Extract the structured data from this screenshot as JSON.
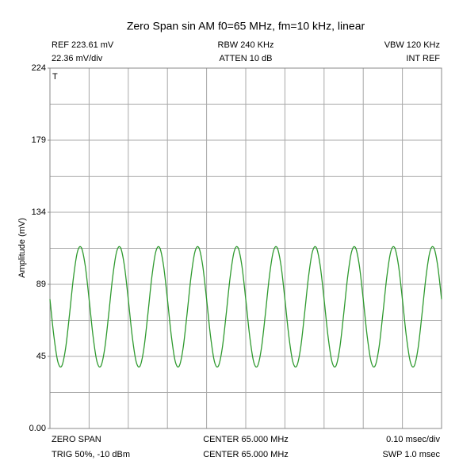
{
  "chart_data": {
    "type": "line",
    "title": "Zero Span sin AM f0=65 MHz, fm=10 kHz, linear",
    "y_label": "Amplitude (mV)",
    "marker": "T",
    "header": [
      [
        "REF 223.61 mV",
        "RBW 240 KHz",
        "VBW 120 KHz"
      ],
      [
        "22.36 mV/div",
        "ATTEN 10 dB",
        "INT REF"
      ]
    ],
    "footer": [
      [
        "ZERO SPAN",
        "CENTER 65.000 MHz",
        "0.10 msec/div"
      ],
      [
        "TRIG 50%, -10 dBm",
        "CENTER 65.000 MHz",
        "SWP 1.0 msec"
      ]
    ],
    "xlim": [
      0,
      1.0
    ],
    "ylim": [
      0,
      223.61
    ],
    "yticks": [
      {
        "value": 0,
        "label": "0.00"
      },
      {
        "value": 44.72,
        "label": "45"
      },
      {
        "value": 89.44,
        "label": "89"
      },
      {
        "value": 134.17,
        "label": "134"
      },
      {
        "value": 178.89,
        "label": "179"
      },
      {
        "value": 223.61,
        "label": "224"
      }
    ],
    "ygrid": [
      0,
      22.36,
      44.72,
      67.08,
      89.44,
      111.81,
      134.17,
      156.53,
      178.89,
      201.25,
      223.61
    ],
    "xgrid": [
      0,
      0.1,
      0.2,
      0.3,
      0.4,
      0.5,
      0.6,
      0.7,
      0.8,
      0.9,
      1.0
    ],
    "grid": true,
    "x": [
      0,
      0.01,
      0.02,
      0.03,
      0.04,
      0.05,
      0.06,
      0.07,
      0.08,
      0.09,
      0.1,
      0.11,
      0.12,
      0.13,
      0.14,
      0.15,
      0.16,
      0.17,
      0.18,
      0.19,
      0.2,
      0.21,
      0.22,
      0.23,
      0.24,
      0.25,
      0.26,
      0.27,
      0.28,
      0.29,
      0.3,
      0.31,
      0.32,
      0.33,
      0.34,
      0.35,
      0.36,
      0.37,
      0.38,
      0.39,
      0.4,
      0.41,
      0.42,
      0.43,
      0.44,
      0.45,
      0.46,
      0.47,
      0.48,
      0.49,
      0.5,
      0.51,
      0.52,
      0.53,
      0.54,
      0.55,
      0.56,
      0.57,
      0.58,
      0.59,
      0.6,
      0.61,
      0.62,
      0.63,
      0.64,
      0.65,
      0.66,
      0.67,
      0.68,
      0.69,
      0.7,
      0.71,
      0.72,
      0.73,
      0.74,
      0.75,
      0.76,
      0.77,
      0.78,
      0.79,
      0.8,
      0.81,
      0.82,
      0.83,
      0.84,
      0.85,
      0.86,
      0.87,
      0.88,
      0.89,
      0.9,
      0.91,
      0.92,
      0.93,
      0.94,
      0.95,
      0.96,
      0.97,
      0.98,
      0.99,
      1.0
    ],
    "series": [
      {
        "color": "#2f9a2f",
        "values": [
          80.2,
          57.4,
          41.6,
          38.7,
          49.8,
          70.8,
          93.6,
          109.4,
          112.3,
          101.2,
          80.2,
          57.4,
          41.6,
          38.7,
          49.8,
          70.8,
          93.6,
          109.4,
          112.3,
          101.2,
          80.2,
          57.4,
          41.6,
          38.7,
          49.8,
          70.8,
          93.6,
          109.4,
          112.3,
          101.2,
          80.2,
          57.4,
          41.6,
          38.7,
          49.8,
          70.8,
          93.6,
          109.4,
          112.3,
          101.2,
          80.2,
          57.4,
          41.6,
          38.7,
          49.8,
          70.8,
          93.6,
          109.4,
          112.3,
          101.2,
          80.2,
          57.4,
          41.6,
          38.7,
          49.8,
          70.8,
          93.6,
          109.4,
          112.3,
          101.2,
          80.2,
          57.4,
          41.6,
          38.7,
          49.8,
          70.8,
          93.6,
          109.4,
          112.3,
          101.2,
          80.2,
          57.4,
          41.6,
          38.7,
          49.8,
          70.8,
          93.6,
          109.4,
          112.3,
          101.2,
          80.2,
          57.4,
          41.6,
          38.7,
          49.8,
          70.8,
          93.6,
          109.4,
          112.3,
          101.2,
          80.2,
          57.4,
          41.6,
          38.7,
          49.8,
          70.8,
          93.6,
          109.4,
          112.3,
          101.2,
          80.2
        ]
      }
    ]
  }
}
